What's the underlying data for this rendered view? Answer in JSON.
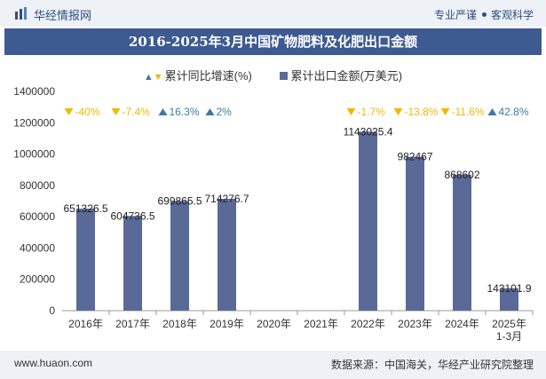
{
  "header": {
    "brand": "华经情报网",
    "tag1": "专业严谨",
    "tag2": "客观科学"
  },
  "chart_title": "2016-2025年3月中国矿物肥料及化肥出口金额",
  "legend": {
    "growth_label": "累计同比增速(%)",
    "amount_label": "累计出口金额(万美元)"
  },
  "footer": {
    "url": "www.huaon.com",
    "source": "数据来源：中国海关，华经产业研究院整理"
  },
  "colors": {
    "bar": "#5a6a98",
    "up": "#3c7aa0",
    "down": "#f2b705",
    "title_bg": "#3d5a91"
  },
  "chart_data": {
    "type": "bar",
    "categories": [
      "2016年",
      "2017年",
      "2018年",
      "2019年",
      "2020年",
      "2021年",
      "2022年",
      "2023年",
      "2024年",
      "2025年\n1-3月"
    ],
    "series": [
      {
        "name": "累计出口金额(万美元)",
        "values": [
          651326.5,
          604736.5,
          699865.5,
          714276.7,
          null,
          null,
          1143025.4,
          982467,
          868602,
          143101.9
        ],
        "labels": [
          "651326.5",
          "604736.5",
          "699865.5",
          "714276.7",
          "",
          "",
          "1143025.4",
          "982467",
          "868602",
          "143101.9"
        ]
      },
      {
        "name": "累计同比增速(%)",
        "values": [
          -40,
          -7.4,
          16.3,
          2,
          null,
          null,
          -1.7,
          -13.8,
          -11.6,
          42.8
        ],
        "labels": [
          "-40%",
          "-7.4%",
          "16.3%",
          "2%",
          "",
          "",
          "-1.7%",
          "-13.8%",
          "-11.6%",
          "42.8%"
        ]
      }
    ],
    "yticks": [
      "0",
      "200000",
      "400000",
      "600000",
      "800000",
      "1000000",
      "1200000",
      "1400000"
    ],
    "ylim": [
      0,
      1400000
    ]
  }
}
